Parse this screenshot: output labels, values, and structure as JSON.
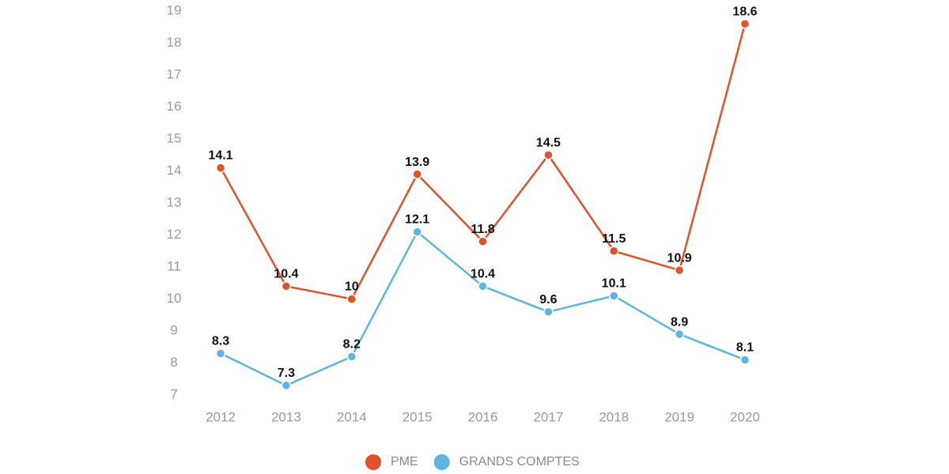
{
  "chart_data": {
    "type": "line",
    "categories": [
      "2012",
      "2013",
      "2014",
      "2015",
      "2016",
      "2017",
      "2018",
      "2019",
      "2020"
    ],
    "series": [
      {
        "name": "PME",
        "color": "#e0522b",
        "values": [
          14.1,
          10.4,
          10,
          13.9,
          11.8,
          14.5,
          11.5,
          10.9,
          18.6
        ]
      },
      {
        "name": "GRANDS COMPTES",
        "color": "#5db6e2",
        "values": [
          8.3,
          7.3,
          8.2,
          12.1,
          10.4,
          9.6,
          10.1,
          8.9,
          8.1
        ]
      }
    ],
    "ylim": [
      7,
      19
    ],
    "yticks": [
      7,
      8,
      9,
      10,
      11,
      12,
      13,
      14,
      15,
      16,
      17,
      18,
      19
    ],
    "grid": false,
    "legend": "bottom"
  }
}
